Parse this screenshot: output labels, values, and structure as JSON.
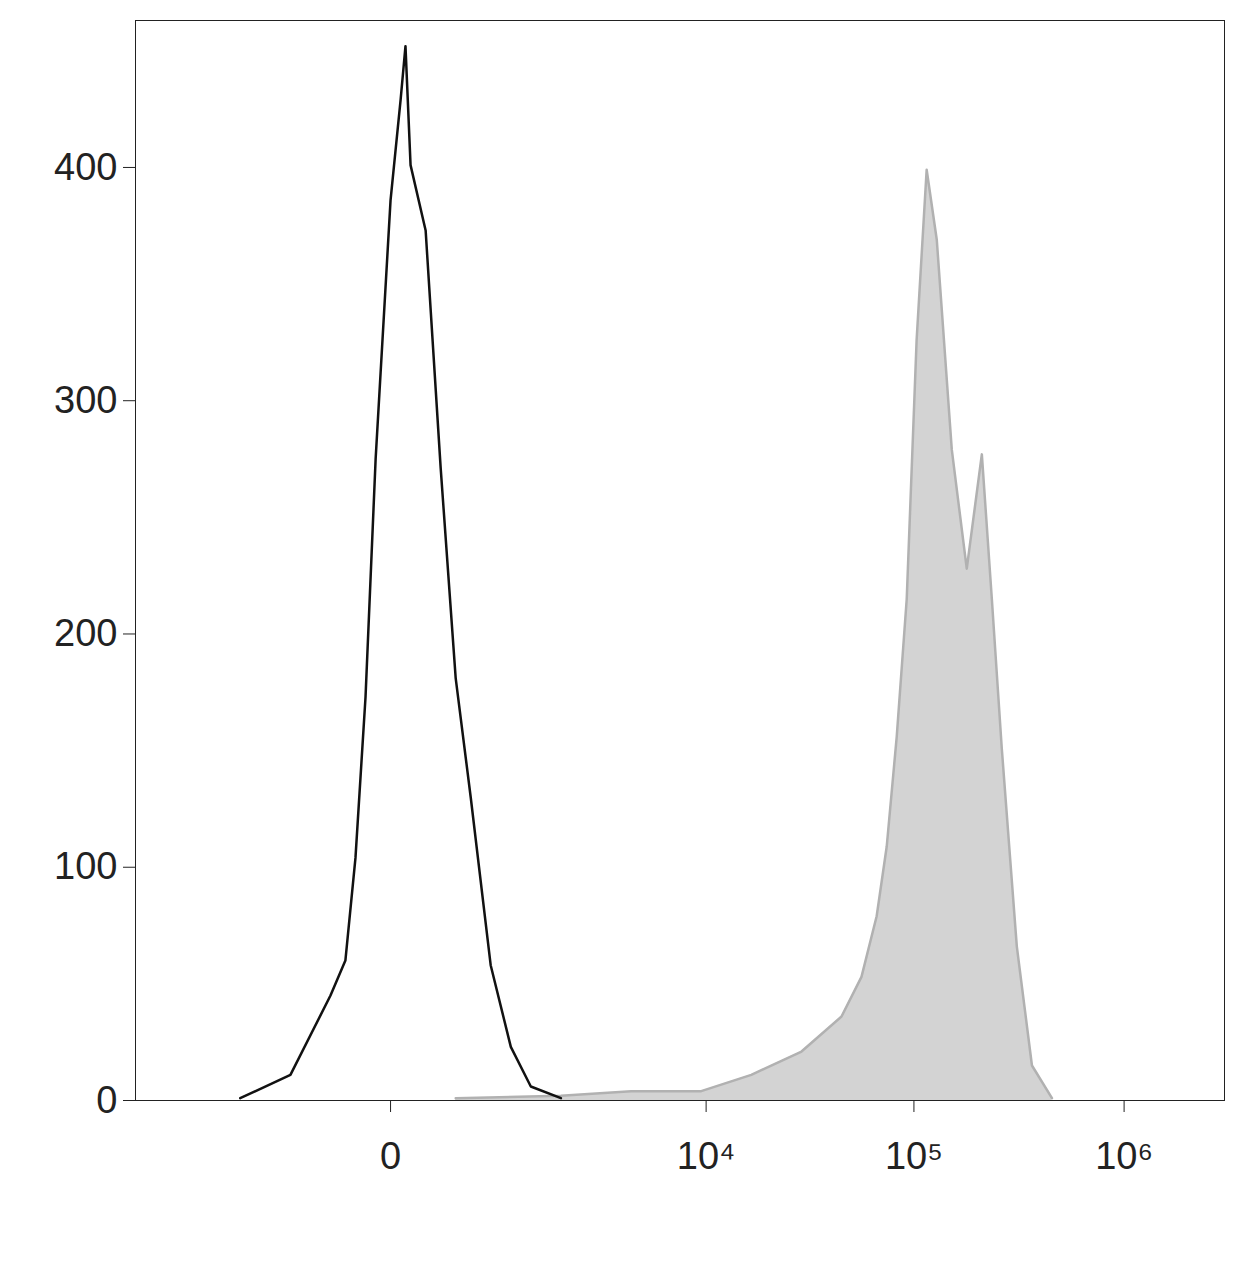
{
  "chart_data": {
    "type": "histogram",
    "log": "x",
    "grid": false,
    "xlim": [
      -5000,
      3000000
    ],
    "xticks": [
      0,
      {
        "value": 10000,
        "label": "10⁴"
      },
      {
        "value": 100000,
        "label": "10⁵"
      },
      {
        "value": 1000000,
        "label": "10⁶"
      }
    ],
    "ylim": [
      0,
      463
    ],
    "yticks": [
      0,
      100,
      200,
      300,
      400
    ],
    "series": [
      {
        "type": "area",
        "color": "#d3d3d3",
        "x": [
          340,
          1782,
          4219,
          9460,
          16600,
          29000,
          45100,
          56200,
          66400,
          74200,
          82800,
          92400,
          103000,
          115000,
          128500,
          151500,
          178500,
          210600,
          235000,
          262000,
          309000,
          364600,
          454000
        ],
        "values": [
          1,
          2,
          4,
          4,
          11,
          21,
          36,
          53,
          79,
          109,
          156,
          215,
          326,
          399,
          369,
          279,
          228,
          277,
          215,
          151,
          66,
          15,
          1
        ]
      },
      {
        "type": "line",
        "color": "#111111",
        "x": [
          -1367,
          -651,
          -304,
          -209,
          -153,
          -103,
          -58,
          0,
          38,
          58,
          80,
          153,
          239,
          340,
          459,
          651,
          892,
          1190,
          1782
        ],
        "values": [
          1,
          11,
          45,
          60,
          104,
          173,
          275,
          386,
          429,
          452,
          401,
          373,
          271,
          181,
          130,
          58,
          23,
          6,
          1
        ]
      }
    ]
  }
}
